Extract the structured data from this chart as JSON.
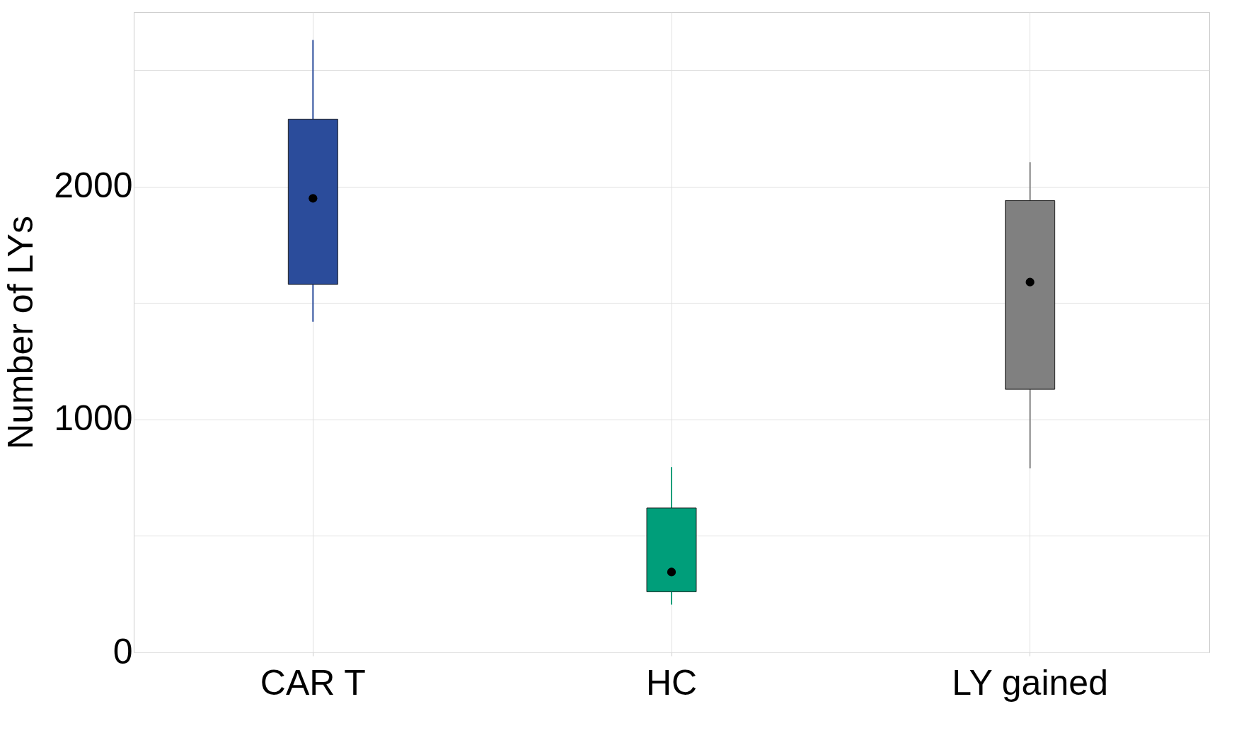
{
  "chart_data": {
    "type": "box",
    "ylabel": "Number of LYs",
    "categories": [
      "CAR T",
      "HC",
      "LY gained"
    ],
    "colors": [
      "#2b4c9b",
      "#009e7a",
      "#808080"
    ],
    "boxes": [
      {
        "low": 1420,
        "q1": 1580,
        "median": 1950,
        "q3": 2290,
        "high": 2630
      },
      {
        "low": 205,
        "q1": 260,
        "median": 345,
        "q3": 620,
        "high": 795
      },
      {
        "low": 790,
        "q1": 1130,
        "median": 1590,
        "q3": 1940,
        "high": 2105
      }
    ],
    "ylim": [
      0,
      2750
    ],
    "yticks": [
      0,
      {
        "value": 500,
        "label": null
      },
      1000,
      {
        "value": 1500,
        "label": null
      },
      2000,
      {
        "value": 2500,
        "label": null
      }
    ],
    "grid": true
  }
}
